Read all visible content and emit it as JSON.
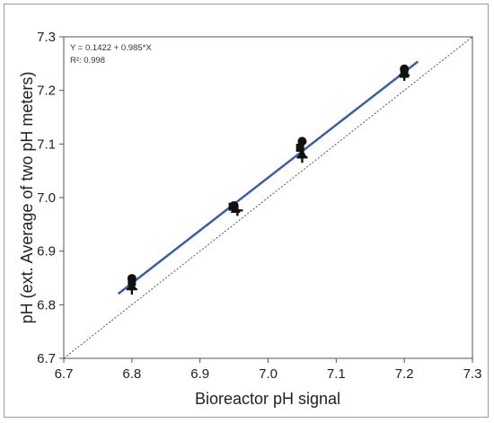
{
  "chart_data": {
    "type": "scatter",
    "title": "",
    "xlabel": "Bioreactor pH signal",
    "ylabel": "pH (ext. Average of two pH meters)",
    "xlim": [
      6.7,
      7.3
    ],
    "ylim": [
      6.7,
      7.3
    ],
    "x_ticks": [
      "6.7",
      "6.8",
      "6.9",
      "7.0",
      "7.1",
      "7.2",
      "7.3"
    ],
    "y_ticks": [
      "6.7",
      "6.8",
      "6.9",
      "7.0",
      "7.1",
      "7.2",
      "7.3"
    ],
    "grid": false,
    "legend": "none",
    "annotations": {
      "equation": "Y = 0.1422 + 0.985*X",
      "r2": "R²: 0.998"
    },
    "fit_line": {
      "intercept": 0.1422,
      "slope": 0.985,
      "x_range": [
        6.78,
        7.22
      ],
      "color": "#3a5ea8"
    },
    "identity_line": {
      "style": "dotted",
      "x_range": [
        6.7,
        7.3
      ],
      "color": "#555555"
    },
    "series": [
      {
        "marker": "circle",
        "points": [
          {
            "x": 6.8,
            "y": 6.849
          },
          {
            "x": 6.95,
            "y": 6.985
          },
          {
            "x": 7.05,
            "y": 7.105
          },
          {
            "x": 7.2,
            "y": 7.24
          }
        ]
      },
      {
        "marker": "square",
        "points": [
          {
            "x": 6.8,
            "y": 6.843
          },
          {
            "x": 6.948,
            "y": 6.983
          },
          {
            "x": 7.047,
            "y": 7.093
          },
          {
            "x": 7.2,
            "y": 7.236
          }
        ]
      },
      {
        "marker": "triangle",
        "points": [
          {
            "x": 6.8,
            "y": 6.836
          },
          {
            "x": 6.952,
            "y": 6.979
          },
          {
            "x": 7.05,
            "y": 7.082
          },
          {
            "x": 7.2,
            "y": 7.231
          }
        ]
      },
      {
        "marker": "plus",
        "points": [
          {
            "x": 6.8,
            "y": 6.829
          },
          {
            "x": 6.955,
            "y": 6.976
          },
          {
            "x": 7.05,
            "y": 7.075
          },
          {
            "x": 7.2,
            "y": 7.228
          }
        ]
      }
    ],
    "marker_color": "#111111"
  }
}
